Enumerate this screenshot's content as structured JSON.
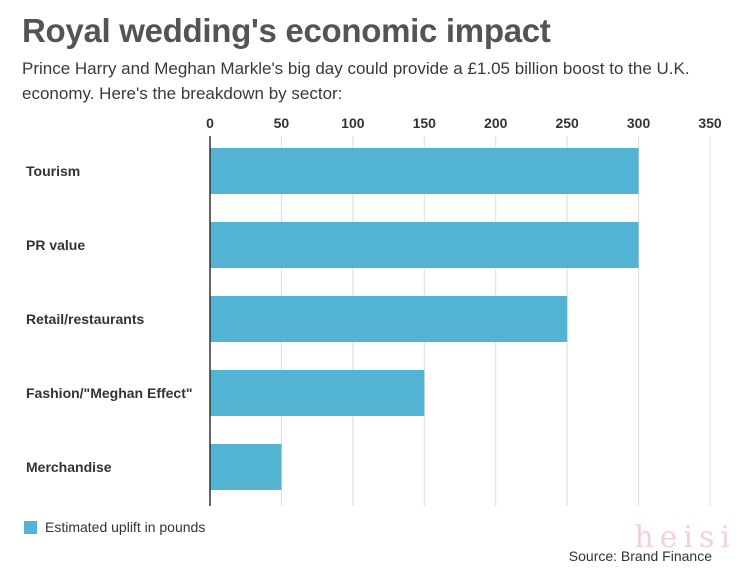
{
  "header": {
    "title": "Royal wedding's economic impact",
    "subtitle": "Prince Harry and Meghan Markle's big day could provide a £1.05 billion boost to the U.K. economy. Here's the breakdown by sector:"
  },
  "chart_data": {
    "type": "bar",
    "orientation": "horizontal",
    "categories": [
      "Tourism",
      "PR value",
      "Retail/restaurants",
      "Fashion/\"Meghan Effect\"",
      "Merchandise"
    ],
    "series": [
      {
        "name": "Estimated uplift in pounds",
        "values": [
          300,
          300,
          250,
          150,
          50
        ]
      }
    ],
    "xlim": [
      0,
      350
    ],
    "xticks": [
      0,
      50,
      100,
      150,
      200,
      250,
      300,
      350
    ],
    "tick_position": "top",
    "grid": true,
    "legend_position": "bottom-left"
  },
  "legend": {
    "label": "Estimated uplift in pounds"
  },
  "source": "Source: Brand Finance",
  "watermark": "heisi",
  "colors": {
    "bar": "#52b3d3",
    "title": "#545454"
  }
}
